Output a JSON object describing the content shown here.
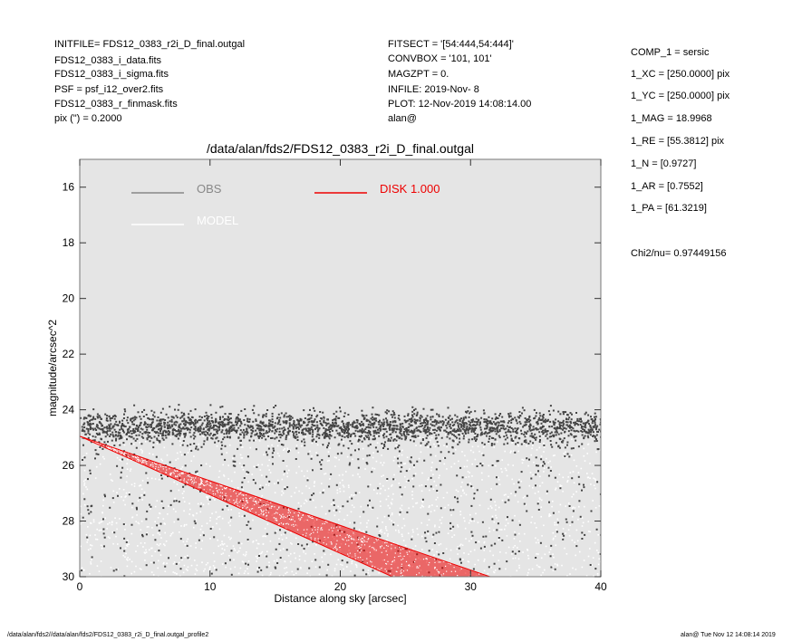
{
  "header_left": [
    "INITFILE= FDS12_0383_r2i_D_final.outgal",
    "FDS12_0383_i_data.fits",
    "FDS12_0383_i_sigma.fits",
    "PSF     = psf_i12_over2.fits",
    "FDS12_0383_r_finmask.fits",
    "pix (\") =  0.2000"
  ],
  "header_mid": [
    "FITSECT = '[54:444,54:444]'",
    "CONVBOX = '101, 101'",
    "MAGZPT  =                  0.",
    "INFILE: 2019-Nov- 8",
    "PLOT: 12-Nov-2019 14:08:14.00",
    "alan@"
  ],
  "params": [
    "COMP_1  = sersic",
    "1_XC    = [250.0000] pix",
    "1_YC    = [250.0000] pix",
    "1_MAG   = 18.9968",
    "1_RE    = [55.3812] pix",
    "1_N     = [0.9727]",
    "1_AR    = [0.7552]",
    "1_PA    = [61.3219]"
  ],
  "chi2": "Chi2/nu=      0.97449156",
  "footer_left": "/data/alan/fds2//data/alan/fds2/FDS12_0383_r2i_D_final.outgal_profile2",
  "footer_right": "alan@  Tue Nov 12 14:08:14 2019",
  "colors": {
    "panel_bg": "#e5e5e5",
    "obs": "#444444",
    "model": "#ffffff",
    "disk": "#ee0000",
    "obs_legend": "#888888"
  },
  "chart_data": {
    "type": "scatter",
    "title": "/data/alan/fds2/FDS12_0383_r2i_D_final.outgal",
    "xlabel": "Distance along sky [arcsec]",
    "ylabel": "magnitude/arcsec^2",
    "xlim": [
      0,
      40
    ],
    "ylim": [
      30,
      15
    ],
    "xticks": [
      0,
      10,
      20,
      30,
      40
    ],
    "yticks": [
      16,
      18,
      20,
      22,
      24,
      26,
      28,
      30
    ],
    "legend": [
      {
        "name": "OBS",
        "style": "line",
        "color": "#888888"
      },
      {
        "name": "MODEL",
        "style": "line",
        "color": "#ffffff"
      },
      {
        "name": "DISK  1.000",
        "style": "line",
        "color": "#ee0000"
      }
    ],
    "obs_band": {
      "mag_center": 24.6,
      "mag_spread": 0.5,
      "x_range": [
        0,
        40
      ]
    },
    "obs_faint_scatter": {
      "mag_range": [
        25.2,
        30
      ],
      "x_range": [
        0,
        40
      ]
    },
    "model_scatter": {
      "mag_range": [
        24.8,
        30
      ],
      "x_range": [
        0,
        40
      ]
    },
    "disk_component": {
      "upper_edge": [
        [
          0,
          24.95
        ],
        [
          31.5,
          30
        ]
      ],
      "lower_edge": [
        [
          0,
          24.95
        ],
        [
          24.0,
          30
        ]
      ]
    }
  }
}
